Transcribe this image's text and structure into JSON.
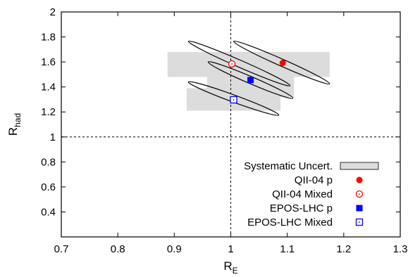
{
  "chart_data": {
    "type": "scatter",
    "title": "",
    "xlabel": {
      "main": "R",
      "sub": "E"
    },
    "ylabel": {
      "main": "R",
      "sub": "had"
    },
    "xlim": [
      0.7,
      1.3
    ],
    "ylim": [
      0.2,
      2.0
    ],
    "x_ticks": [
      "0.7",
      "0.8",
      "0.9",
      "1",
      "1.1",
      "1.2",
      "1.3"
    ],
    "x_tick_values": [
      0.7,
      0.8,
      0.9,
      1.0,
      1.1,
      1.2,
      1.3
    ],
    "y_ticks": [
      "0.4",
      "0.6",
      "0.8",
      "1",
      "1.2",
      "1.4",
      "1.6",
      "1.8",
      "2"
    ],
    "y_tick_values": [
      0.4,
      0.6,
      0.8,
      1.0,
      1.2,
      1.4,
      1.6,
      1.8,
      2.0
    ],
    "reference_lines": {
      "x": 1.0,
      "y": 1.0,
      "style": "dashed"
    },
    "legend_position": "bottom-right",
    "series": [
      {
        "name": "QII-04 p",
        "x": 1.092,
        "y": 1.592,
        "marker": "filled-circle",
        "color": "#ff0000"
      },
      {
        "name": "QII-04 Mixed",
        "x": 1.002,
        "y": 1.584,
        "marker": "open-circle",
        "color": "#ff0000"
      },
      {
        "name": "EPOS-LHC p",
        "x": 1.035,
        "y": 1.455,
        "marker": "filled-square",
        "color": "#0000ff"
      },
      {
        "name": "EPOS-LHC Mixed",
        "x": 1.005,
        "y": 1.297,
        "marker": "open-square",
        "color": "#0000ff"
      }
    ],
    "contours": [
      {
        "series": "QII-04 p",
        "from": [
          1.005,
          1.765
        ],
        "to": [
          1.175,
          1.425
        ]
      },
      {
        "series": "QII-04 Mixed",
        "from": [
          0.925,
          1.765
        ],
        "to": [
          1.105,
          1.41
        ]
      },
      {
        "series": "EPOS-LHC p",
        "from": [
          0.96,
          1.6
        ],
        "to": [
          1.11,
          1.31
        ]
      },
      {
        "series": "EPOS-LHC Mixed",
        "from": [
          0.925,
          1.44
        ],
        "to": [
          1.085,
          1.175
        ]
      }
    ],
    "systematic_boxes": {
      "name": "Systematic Uncert.",
      "color": "#dcdcdc",
      "boxes": [
        {
          "x": [
            0.888,
            1.175
          ],
          "y": [
            1.48,
            1.68
          ]
        },
        {
          "x": [
            0.958,
            1.112
          ],
          "y": [
            1.32,
            1.58
          ]
        },
        {
          "x": [
            0.922,
            1.088
          ],
          "y": [
            1.21,
            1.39
          ]
        }
      ]
    }
  }
}
